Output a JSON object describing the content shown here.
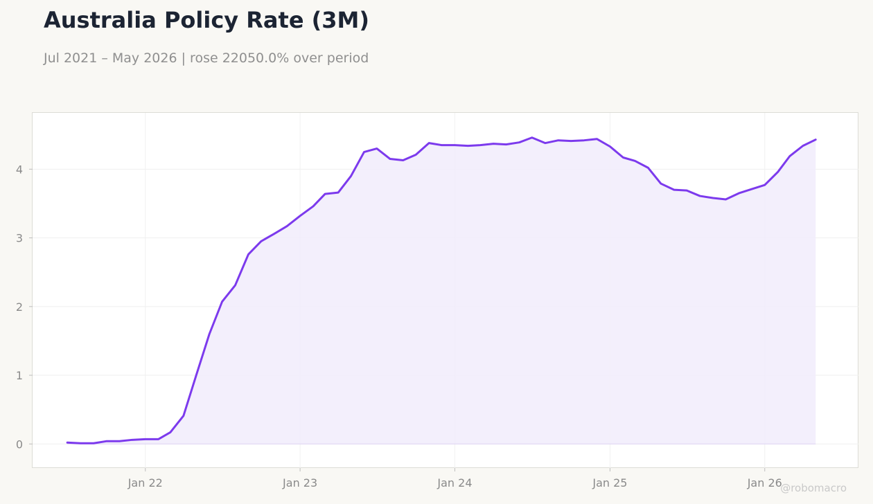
{
  "header": {
    "title": "Australia Policy Rate (3M)",
    "subtitle": "Jul 2021 – May 2026 | rose 22050.0% over period"
  },
  "watermark": "@robomacro",
  "colors": {
    "line": "#7c3aed",
    "fill": "#f1ecfc",
    "background": "#f9f8f4",
    "plot_background": "#ffffff"
  },
  "chart_data": {
    "type": "line",
    "title": "Australia Policy Rate (3M)",
    "xlabel": "",
    "ylabel": "",
    "grid": true,
    "legend": "none",
    "x_ticks": [
      {
        "date": "2022-01-01",
        "label": "Jan 22"
      },
      {
        "date": "2023-01-01",
        "label": "Jan 23"
      },
      {
        "date": "2024-01-01",
        "label": "Jan 24"
      },
      {
        "date": "2025-01-01",
        "label": "Jan 25"
      },
      {
        "date": "2026-01-01",
        "label": "Jan 26"
      }
    ],
    "y_ticks": [
      0,
      1,
      2,
      3,
      4
    ],
    "xlim": [
      "2021-04-10",
      "2026-08-10"
    ],
    "ylim": [
      -0.35,
      4.82
    ],
    "series": [
      {
        "x": [
          "2021-07-01",
          "2021-08-01",
          "2021-09-01",
          "2021-10-01",
          "2021-11-01",
          "2021-12-01",
          "2022-01-01",
          "2022-02-01",
          "2022-03-01",
          "2022-04-01",
          "2022-05-01",
          "2022-06-01",
          "2022-07-01",
          "2022-08-01",
          "2022-09-01",
          "2022-10-01",
          "2022-11-01",
          "2022-12-01",
          "2023-01-01",
          "2023-02-01",
          "2023-03-01",
          "2023-04-01",
          "2023-05-01",
          "2023-06-01",
          "2023-07-01",
          "2023-08-01",
          "2023-09-01",
          "2023-10-01",
          "2023-11-01",
          "2023-12-01",
          "2024-01-01",
          "2024-02-01",
          "2024-03-01",
          "2024-04-01",
          "2024-05-01",
          "2024-06-01",
          "2024-07-01",
          "2024-08-01",
          "2024-09-01",
          "2024-10-01",
          "2024-11-01",
          "2024-12-01",
          "2025-01-01",
          "2025-02-01",
          "2025-03-01",
          "2025-04-01",
          "2025-05-01",
          "2025-06-01",
          "2025-07-01",
          "2025-08-01",
          "2025-09-01",
          "2025-10-01",
          "2025-11-01",
          "2025-12-01",
          "2026-01-01",
          "2026-02-01",
          "2026-03-01",
          "2026-04-01",
          "2026-05-01"
        ],
        "values": [
          0.02,
          0.01,
          0.01,
          0.04,
          0.04,
          0.06,
          0.07,
          0.07,
          0.17,
          0.41,
          1.0,
          1.6,
          2.07,
          2.31,
          2.76,
          2.95,
          3.06,
          3.17,
          3.32,
          3.46,
          3.64,
          3.66,
          3.9,
          4.25,
          4.3,
          4.15,
          4.13,
          4.21,
          4.38,
          4.35,
          4.35,
          4.34,
          4.35,
          4.37,
          4.36,
          4.39,
          4.46,
          4.38,
          4.42,
          4.41,
          4.42,
          4.44,
          4.33,
          4.17,
          4.12,
          4.02,
          3.79,
          3.7,
          3.69,
          3.61,
          3.58,
          3.56,
          3.65,
          3.71,
          3.77,
          3.96,
          4.19,
          4.34,
          4.43
        ]
      }
    ]
  }
}
